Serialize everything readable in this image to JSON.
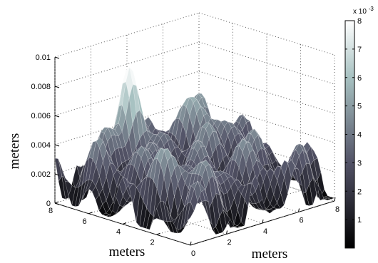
{
  "chart_data": {
    "type": "surface",
    "zlabel": "meters",
    "xlabel": "meters",
    "ylabel": "meters",
    "x_ticks": [
      "0",
      "2",
      "4",
      "6",
      "8"
    ],
    "y_ticks": [
      "2",
      "4",
      "6",
      "8"
    ],
    "z_ticks": [
      "0",
      "0.002",
      "0.004",
      "0.006",
      "0.008",
      "0.01"
    ],
    "xlim": [
      0,
      8
    ],
    "ylim": [
      0,
      8
    ],
    "zlim": [
      0,
      0.01
    ],
    "colorbar": {
      "exponent_label": "x 10",
      "exponent_power": "-3",
      "ticks": [
        "1",
        "2",
        "3",
        "4",
        "5",
        "6",
        "7",
        "8"
      ],
      "range": [
        0,
        8
      ],
      "colormap": "bone"
    },
    "grid": true,
    "surface_peak": {
      "x": 3.2,
      "y": 7.0,
      "z": 0.0088
    },
    "surface_baseline_z": 0.0024
  }
}
